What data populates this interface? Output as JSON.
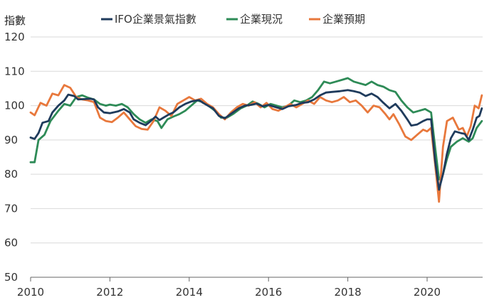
{
  "chart_data": {
    "type": "line",
    "ylabel": "指數",
    "xlim": [
      2010,
      2021.4
    ],
    "ylim": [
      50,
      120
    ],
    "yticks": [
      50,
      60,
      70,
      80,
      90,
      100,
      110,
      120
    ],
    "xticks": [
      2010,
      2012,
      2014,
      2016,
      2018,
      2020
    ],
    "grid": true,
    "legend_position": "top",
    "series": [
      {
        "name": "IFO企業景氣指數",
        "color": "#1f3b5c",
        "points": [
          [
            2010.0,
            90.7
          ],
          [
            2010.1,
            90.3
          ],
          [
            2010.2,
            92.0
          ],
          [
            2010.3,
            95.0
          ],
          [
            2010.45,
            95.5
          ],
          [
            2010.55,
            98.0
          ],
          [
            2010.7,
            100.0
          ],
          [
            2010.85,
            101.5
          ],
          [
            2010.95,
            103.2
          ],
          [
            2011.1,
            102.8
          ],
          [
            2011.2,
            101.8
          ],
          [
            2011.35,
            101.9
          ],
          [
            2011.5,
            102.0
          ],
          [
            2011.6,
            101.8
          ],
          [
            2011.7,
            99.5
          ],
          [
            2011.85,
            98.0
          ],
          [
            2012.0,
            97.8
          ],
          [
            2012.2,
            98.3
          ],
          [
            2012.35,
            99.0
          ],
          [
            2012.5,
            98.0
          ],
          [
            2012.6,
            96.0
          ],
          [
            2012.75,
            95.0
          ],
          [
            2012.9,
            94.3
          ],
          [
            2013.0,
            95.2
          ],
          [
            2013.15,
            96.8
          ],
          [
            2013.25,
            95.8
          ],
          [
            2013.35,
            96.5
          ],
          [
            2013.5,
            97.5
          ],
          [
            2013.6,
            98.0
          ],
          [
            2013.75,
            99.5
          ],
          [
            2013.9,
            100.5
          ],
          [
            2014.05,
            101.2
          ],
          [
            2014.25,
            101.6
          ],
          [
            2014.35,
            100.8
          ],
          [
            2014.5,
            99.8
          ],
          [
            2014.6,
            99.2
          ],
          [
            2014.75,
            97.0
          ],
          [
            2014.9,
            96.3
          ],
          [
            2015.1,
            98.0
          ],
          [
            2015.25,
            99.2
          ],
          [
            2015.4,
            100.0
          ],
          [
            2015.55,
            100.2
          ],
          [
            2015.7,
            100.6
          ],
          [
            2015.85,
            99.8
          ],
          [
            2016.0,
            100.2
          ],
          [
            2016.2,
            99.5
          ],
          [
            2016.35,
            99.0
          ],
          [
            2016.5,
            99.8
          ],
          [
            2016.7,
            100.2
          ],
          [
            2016.85,
            100.8
          ],
          [
            2017.0,
            101.0
          ],
          [
            2017.15,
            101.8
          ],
          [
            2017.3,
            103.0
          ],
          [
            2017.45,
            103.8
          ],
          [
            2017.6,
            104.0
          ],
          [
            2017.8,
            104.2
          ],
          [
            2018.0,
            104.5
          ],
          [
            2018.15,
            104.2
          ],
          [
            2018.3,
            103.8
          ],
          [
            2018.45,
            102.8
          ],
          [
            2018.6,
            103.5
          ],
          [
            2018.75,
            102.5
          ],
          [
            2018.9,
            100.8
          ],
          [
            2019.05,
            99.2
          ],
          [
            2019.2,
            100.5
          ],
          [
            2019.35,
            98.5
          ],
          [
            2019.5,
            96.0
          ],
          [
            2019.6,
            94.2
          ],
          [
            2019.75,
            94.5
          ],
          [
            2019.9,
            95.5
          ],
          [
            2020.0,
            96.0
          ],
          [
            2020.1,
            96.0
          ],
          [
            2020.2,
            84.0
          ],
          [
            2020.3,
            75.5
          ],
          [
            2020.4,
            80.0
          ],
          [
            2020.5,
            86.0
          ],
          [
            2020.6,
            90.5
          ],
          [
            2020.7,
            92.5
          ],
          [
            2020.85,
            92.0
          ],
          [
            2020.95,
            91.8
          ],
          [
            2021.05,
            90.0
          ],
          [
            2021.15,
            93.0
          ],
          [
            2021.25,
            96.5
          ],
          [
            2021.32,
            97.0
          ],
          [
            2021.38,
            99.2
          ]
        ]
      },
      {
        "name": "企業現況",
        "color": "#2e8b57",
        "points": [
          [
            2010.0,
            83.5
          ],
          [
            2010.1,
            83.5
          ],
          [
            2010.2,
            90.0
          ],
          [
            2010.35,
            91.5
          ],
          [
            2010.5,
            95.5
          ],
          [
            2010.7,
            98.5
          ],
          [
            2010.85,
            100.5
          ],
          [
            2011.0,
            100.0
          ],
          [
            2011.15,
            102.5
          ],
          [
            2011.3,
            103.0
          ],
          [
            2011.45,
            102.3
          ],
          [
            2011.6,
            101.8
          ],
          [
            2011.75,
            100.5
          ],
          [
            2011.9,
            100.0
          ],
          [
            2012.0,
            100.3
          ],
          [
            2012.15,
            100.0
          ],
          [
            2012.3,
            100.5
          ],
          [
            2012.45,
            99.5
          ],
          [
            2012.6,
            97.5
          ],
          [
            2012.75,
            96.0
          ],
          [
            2012.9,
            95.0
          ],
          [
            2013.05,
            96.0
          ],
          [
            2013.2,
            95.5
          ],
          [
            2013.3,
            93.5
          ],
          [
            2013.45,
            96.0
          ],
          [
            2013.6,
            96.8
          ],
          [
            2013.75,
            97.5
          ],
          [
            2013.9,
            98.5
          ],
          [
            2014.05,
            100.0
          ],
          [
            2014.2,
            101.5
          ],
          [
            2014.35,
            101.0
          ],
          [
            2014.5,
            99.8
          ],
          [
            2014.65,
            98.5
          ],
          [
            2014.8,
            96.5
          ],
          [
            2014.95,
            96.5
          ],
          [
            2015.1,
            97.5
          ],
          [
            2015.3,
            99.2
          ],
          [
            2015.45,
            100.0
          ],
          [
            2015.6,
            101.2
          ],
          [
            2015.75,
            100.5
          ],
          [
            2015.9,
            99.5
          ],
          [
            2016.05,
            100.5
          ],
          [
            2016.2,
            100.0
          ],
          [
            2016.35,
            99.5
          ],
          [
            2016.5,
            100.0
          ],
          [
            2016.65,
            101.5
          ],
          [
            2016.8,
            101.0
          ],
          [
            2016.95,
            101.5
          ],
          [
            2017.1,
            102.5
          ],
          [
            2017.25,
            104.5
          ],
          [
            2017.4,
            107.0
          ],
          [
            2017.55,
            106.5
          ],
          [
            2017.7,
            107.0
          ],
          [
            2017.85,
            107.5
          ],
          [
            2018.0,
            108.0
          ],
          [
            2018.15,
            107.0
          ],
          [
            2018.3,
            106.5
          ],
          [
            2018.45,
            106.0
          ],
          [
            2018.6,
            107.0
          ],
          [
            2018.75,
            106.0
          ],
          [
            2018.9,
            105.5
          ],
          [
            2019.05,
            104.5
          ],
          [
            2019.2,
            104.0
          ],
          [
            2019.35,
            101.5
          ],
          [
            2019.5,
            99.5
          ],
          [
            2019.65,
            98.0
          ],
          [
            2019.8,
            98.5
          ],
          [
            2019.95,
            99.0
          ],
          [
            2020.1,
            98.0
          ],
          [
            2020.2,
            88.0
          ],
          [
            2020.3,
            78.5
          ],
          [
            2020.4,
            80.0
          ],
          [
            2020.5,
            84.5
          ],
          [
            2020.6,
            88.0
          ],
          [
            2020.75,
            89.5
          ],
          [
            2020.9,
            90.5
          ],
          [
            2021.05,
            89.5
          ],
          [
            2021.15,
            90.5
          ],
          [
            2021.25,
            93.5
          ],
          [
            2021.38,
            95.5
          ]
        ]
      },
      {
        "name": "企業預期",
        "color": "#e8783c",
        "points": [
          [
            2010.0,
            98.0
          ],
          [
            2010.1,
            97.2
          ],
          [
            2010.25,
            100.8
          ],
          [
            2010.4,
            100.0
          ],
          [
            2010.55,
            103.5
          ],
          [
            2010.7,
            103.0
          ],
          [
            2010.85,
            106.0
          ],
          [
            2011.0,
            105.2
          ],
          [
            2011.15,
            102.5
          ],
          [
            2011.3,
            101.8
          ],
          [
            2011.45,
            101.5
          ],
          [
            2011.6,
            101.0
          ],
          [
            2011.75,
            96.5
          ],
          [
            2011.9,
            95.5
          ],
          [
            2012.05,
            95.2
          ],
          [
            2012.2,
            96.5
          ],
          [
            2012.35,
            98.0
          ],
          [
            2012.5,
            96.0
          ],
          [
            2012.65,
            94.0
          ],
          [
            2012.8,
            93.2
          ],
          [
            2012.95,
            93.0
          ],
          [
            2013.1,
            95.5
          ],
          [
            2013.25,
            99.5
          ],
          [
            2013.4,
            98.5
          ],
          [
            2013.55,
            97.0
          ],
          [
            2013.7,
            100.5
          ],
          [
            2013.85,
            101.5
          ],
          [
            2014.0,
            102.5
          ],
          [
            2014.15,
            101.5
          ],
          [
            2014.3,
            102.0
          ],
          [
            2014.45,
            100.5
          ],
          [
            2014.6,
            99.5
          ],
          [
            2014.75,
            97.5
          ],
          [
            2014.9,
            96.0
          ],
          [
            2015.05,
            98.0
          ],
          [
            2015.2,
            99.5
          ],
          [
            2015.35,
            100.5
          ],
          [
            2015.5,
            100.0
          ],
          [
            2015.65,
            101.0
          ],
          [
            2015.8,
            99.5
          ],
          [
            2015.95,
            100.8
          ],
          [
            2016.1,
            99.0
          ],
          [
            2016.25,
            98.5
          ],
          [
            2016.4,
            99.5
          ],
          [
            2016.55,
            100.5
          ],
          [
            2016.7,
            99.5
          ],
          [
            2016.85,
            100.5
          ],
          [
            2017.0,
            101.5
          ],
          [
            2017.15,
            100.5
          ],
          [
            2017.3,
            102.5
          ],
          [
            2017.45,
            101.5
          ],
          [
            2017.6,
            101.0
          ],
          [
            2017.75,
            101.5
          ],
          [
            2017.9,
            102.5
          ],
          [
            2018.05,
            101.0
          ],
          [
            2018.2,
            101.5
          ],
          [
            2018.35,
            100.0
          ],
          [
            2018.5,
            98.0
          ],
          [
            2018.65,
            100.0
          ],
          [
            2018.8,
            99.5
          ],
          [
            2018.95,
            97.5
          ],
          [
            2019.05,
            96.0
          ],
          [
            2019.15,
            97.5
          ],
          [
            2019.3,
            94.5
          ],
          [
            2019.45,
            91.0
          ],
          [
            2019.6,
            90.0
          ],
          [
            2019.75,
            91.5
          ],
          [
            2019.9,
            93.0
          ],
          [
            2020.0,
            92.5
          ],
          [
            2020.1,
            93.5
          ],
          [
            2020.2,
            83.0
          ],
          [
            2020.3,
            72.0
          ],
          [
            2020.4,
            88.0
          ],
          [
            2020.5,
            95.5
          ],
          [
            2020.65,
            96.5
          ],
          [
            2020.8,
            93.0
          ],
          [
            2020.9,
            93.5
          ],
          [
            2021.0,
            91.0
          ],
          [
            2021.1,
            94.0
          ],
          [
            2021.2,
            100.0
          ],
          [
            2021.3,
            99.2
          ],
          [
            2021.38,
            103.0
          ]
        ]
      }
    ]
  }
}
